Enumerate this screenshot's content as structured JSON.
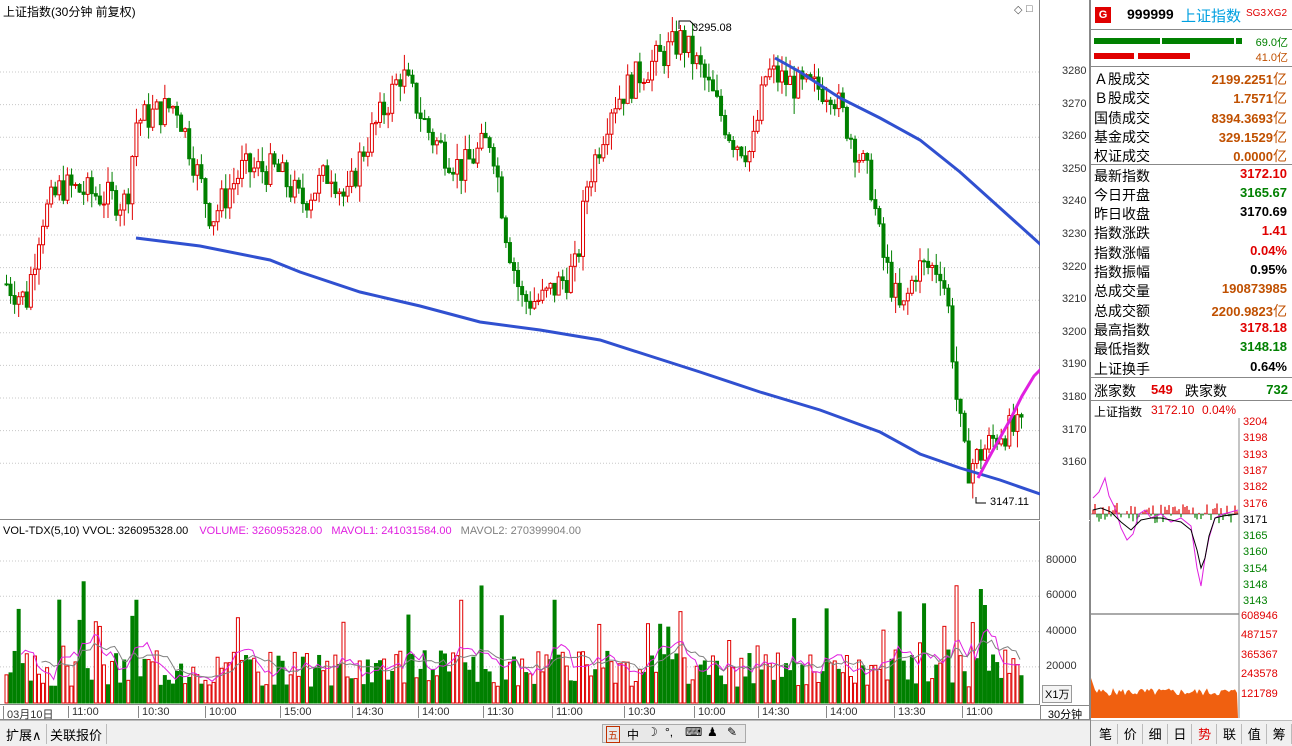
{
  "main": {
    "title": "上证指数(30分钟 前复权)",
    "high_label": "3295.08",
    "low_label": "3147.11",
    "y_ticks": [
      "3280",
      "3270",
      "3260",
      "3250",
      "3240",
      "3230",
      "3220",
      "3210",
      "3200",
      "3190",
      "3180",
      "3170",
      "3160"
    ]
  },
  "volume": {
    "title_main": "VOL-TDX(5,10)  VVOL: 326095328.00",
    "volume_label": "VOLUME: 326095328.00",
    "mavol1_label": "MAVOL1: 241031584.00",
    "mavol2_label": "MAVOL2: 270399904.00",
    "y_ticks": [
      "80000",
      "60000",
      "40000",
      "20000"
    ],
    "unit": "X1万"
  },
  "xaxis": {
    "labels": [
      "03月10日",
      "11:00",
      "10:30",
      "10:00",
      "15:00",
      "14:30",
      "14:00",
      "11:30",
      "11:00",
      "10:30",
      "10:00",
      "14:30",
      "14:00",
      "13:30",
      "11:00"
    ],
    "period_button": "30分钟"
  },
  "bottom_tabs": {
    "expand": "扩展∧",
    "related": "关联报价"
  },
  "panel": {
    "badge": "G",
    "code": "999999",
    "name": "上证指数",
    "tags": [
      "SG3",
      "XG2"
    ],
    "bar_top_value": "69.0亿",
    "bar_bottom_value": "41.0亿",
    "rows": [
      {
        "label": "Ａ股成交",
        "value": "2199.2251",
        "unit": "亿",
        "color": "orange"
      },
      {
        "label": "Ｂ股成交",
        "value": "1.7571",
        "unit": "亿",
        "color": "orange"
      },
      {
        "label": "国债成交",
        "value": "8394.3693",
        "unit": "亿",
        "color": "orange"
      },
      {
        "label": "基金成交",
        "value": "329.1529",
        "unit": "亿",
        "color": "orange"
      },
      {
        "label": "权证成交",
        "value": "0.0000",
        "unit": "亿",
        "color": "orange"
      },
      {
        "label": "最新指数",
        "value": "3172.10",
        "unit": "",
        "color": "red"
      },
      {
        "label": "今日开盘",
        "value": "3165.67",
        "unit": "",
        "color": "green"
      },
      {
        "label": "昨日收盘",
        "value": "3170.69",
        "unit": "",
        "color": "black"
      },
      {
        "label": "指数涨跌",
        "value": "1.41",
        "unit": "",
        "color": "red"
      },
      {
        "label": "指数涨幅",
        "value": "0.04%",
        "unit": "",
        "color": "red"
      },
      {
        "label": "指数振幅",
        "value": "0.95%",
        "unit": "",
        "color": "black"
      },
      {
        "label": "总成交量",
        "value": "190873985",
        "unit": "",
        "color": "orange"
      },
      {
        "label": "总成交额",
        "value": "2200.9823",
        "unit": "亿",
        "color": "orange"
      },
      {
        "label": "最高指数",
        "value": "3178.18",
        "unit": "",
        "color": "red"
      },
      {
        "label": "最低指数",
        "value": "3148.18",
        "unit": "",
        "color": "green"
      },
      {
        "label": "上证换手",
        "value": "0.64%",
        "unit": "",
        "color": "black"
      }
    ],
    "rise_label": "涨家数",
    "rise_value": "549",
    "fall_label": "跌家数",
    "fall_value": "732",
    "mini": {
      "title": "上证指数",
      "price": "3172.10",
      "pct": "0.04%",
      "price_ticks": [
        "3204",
        "3198",
        "3193",
        "3187",
        "3182",
        "3176",
        "3171",
        "3165",
        "3160",
        "3154",
        "3148",
        "3143"
      ],
      "vol_ticks": [
        "608946",
        "487157",
        "365367",
        "243578",
        "121789"
      ]
    },
    "tabs": [
      "笔",
      "价",
      "细",
      "日",
      "势",
      "联",
      "值",
      "筹"
    ]
  },
  "colors": {
    "up": "#e00000",
    "down": "#008000",
    "ma_line": "#3050d0",
    "magenta": "#e020e0",
    "orange": "#c05000"
  }
}
